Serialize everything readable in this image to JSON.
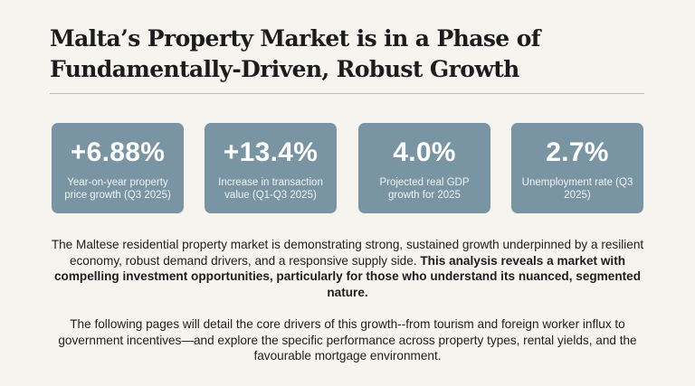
{
  "title": {
    "line1": "Malta’s Property Market is in a Phase of",
    "line2": "Fundamentally-Driven, Robust Growth"
  },
  "stats": [
    {
      "value": "+6.88%",
      "label": "Year-on-year property price growth (Q3 2025)"
    },
    {
      "value": "+13.4%",
      "label": "Increase in transaction value (Q1-Q3 2025)"
    },
    {
      "value": "4.0%",
      "label": "Projected real GDP growth for 2025"
    },
    {
      "value": "2.7%",
      "label": "Unemployment rate (Q3 2025)"
    }
  ],
  "paragraphs": {
    "intro": "The Maltese residential property market is demonstrating strong, sustained growth underpinned by a resilient economy, robust demand drivers, and a responsive supply side.",
    "intro_bold": "This analysis reveals a market with compelling investment opportunities, particularly for those who understand its nuanced, segmented nature.",
    "outro": "The following pages will detail the core drivers of this growth--from tourism and foreign worker influx to government incentives—and explore the specific performance across property types, rental yields, and the favourable mortgage environment."
  },
  "colors": {
    "background": "#f6f4ef",
    "card": "#7995a3",
    "rule": "#cdb99b"
  }
}
